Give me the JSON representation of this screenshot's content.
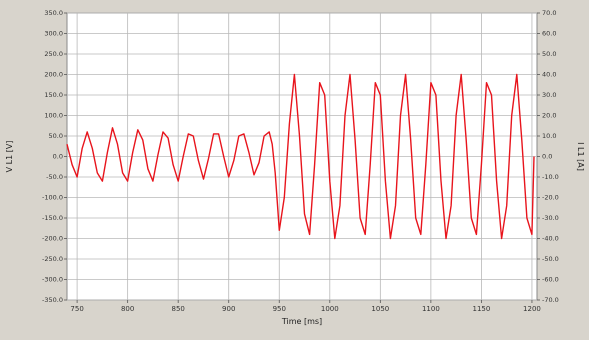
{
  "chart_data": {
    "type": "line",
    "xlabel": "Time [ms]",
    "ylabel_left": "V L1 [V]",
    "ylabel_right": "I L1 [A]",
    "xlim": [
      740,
      1205
    ],
    "ylim_left": [
      -350,
      350
    ],
    "ylim_right": [
      -70,
      70
    ],
    "x_ticks": [
      750,
      800,
      850,
      900,
      950,
      1000,
      1050,
      1100,
      1150,
      1200
    ],
    "y_ticks_left": [
      "350.0",
      "300.0",
      "250.0",
      "200.0",
      "150.0",
      "100.0",
      "50.0",
      "0.0",
      "-50.0",
      "-100.0",
      "-150.0",
      "-200.0",
      "-250.0",
      "-300.0",
      "-350.0"
    ],
    "y_ticks_right": [
      "70.0",
      "60.0",
      "50.0",
      "40.0",
      "30.0",
      "20.0",
      "10.0",
      "0.0",
      "-10.0",
      "-20.0",
      "-30.0",
      "-40.0",
      "-50.0",
      "-60.0",
      "-70.0"
    ],
    "grid": true,
    "colors": {
      "series": "#e8141c",
      "plot_bg": "#ffffff",
      "frame_bg": "#d8d4cc",
      "grid": "#b8b8b8"
    },
    "series": [
      {
        "x": [
          740,
          745,
          750,
          755,
          760,
          765,
          770,
          775,
          780,
          785,
          790,
          795,
          800,
          805,
          810,
          815,
          820,
          825,
          830,
          835,
          840,
          845,
          850,
          855,
          860,
          865,
          870,
          875,
          880,
          885,
          890,
          895,
          900,
          905,
          910,
          915,
          920,
          925,
          930,
          935,
          940,
          943,
          946,
          950,
          955,
          960,
          965,
          970,
          975,
          980,
          985,
          990,
          995,
          1000,
          1005,
          1010,
          1015,
          1020,
          1025,
          1030,
          1035,
          1040,
          1045,
          1050,
          1055,
          1060,
          1065,
          1070,
          1075,
          1080,
          1085,
          1090,
          1095,
          1100,
          1105,
          1110,
          1115,
          1120,
          1125,
          1130,
          1135,
          1140,
          1145,
          1150,
          1155,
          1160,
          1165,
          1170,
          1175,
          1180,
          1185,
          1190,
          1195,
          1200,
          1202
        ],
        "values": [
          30,
          -20,
          -50,
          20,
          60,
          20,
          -40,
          -60,
          10,
          70,
          30,
          -40,
          -60,
          10,
          65,
          40,
          -30,
          -60,
          5,
          60,
          45,
          -20,
          -60,
          0,
          55,
          50,
          -10,
          -55,
          -5,
          55,
          55,
          0,
          -50,
          -10,
          50,
          55,
          10,
          -45,
          -15,
          50,
          60,
          30,
          -40,
          -180,
          -100,
          80,
          200,
          50,
          -140,
          -190,
          -20,
          180,
          150,
          -60,
          -200,
          -120,
          100,
          200,
          40,
          -150,
          -190,
          -20,
          180,
          150,
          -60,
          -200,
          -120,
          100,
          200,
          40,
          -150,
          -190,
          -20,
          180,
          150,
          -60,
          -200,
          -120,
          100,
          200,
          40,
          -150,
          -190,
          -20,
          180,
          150,
          -60,
          -200,
          -120,
          100,
          200,
          40,
          -150,
          -190,
          0
        ]
      }
    ]
  }
}
